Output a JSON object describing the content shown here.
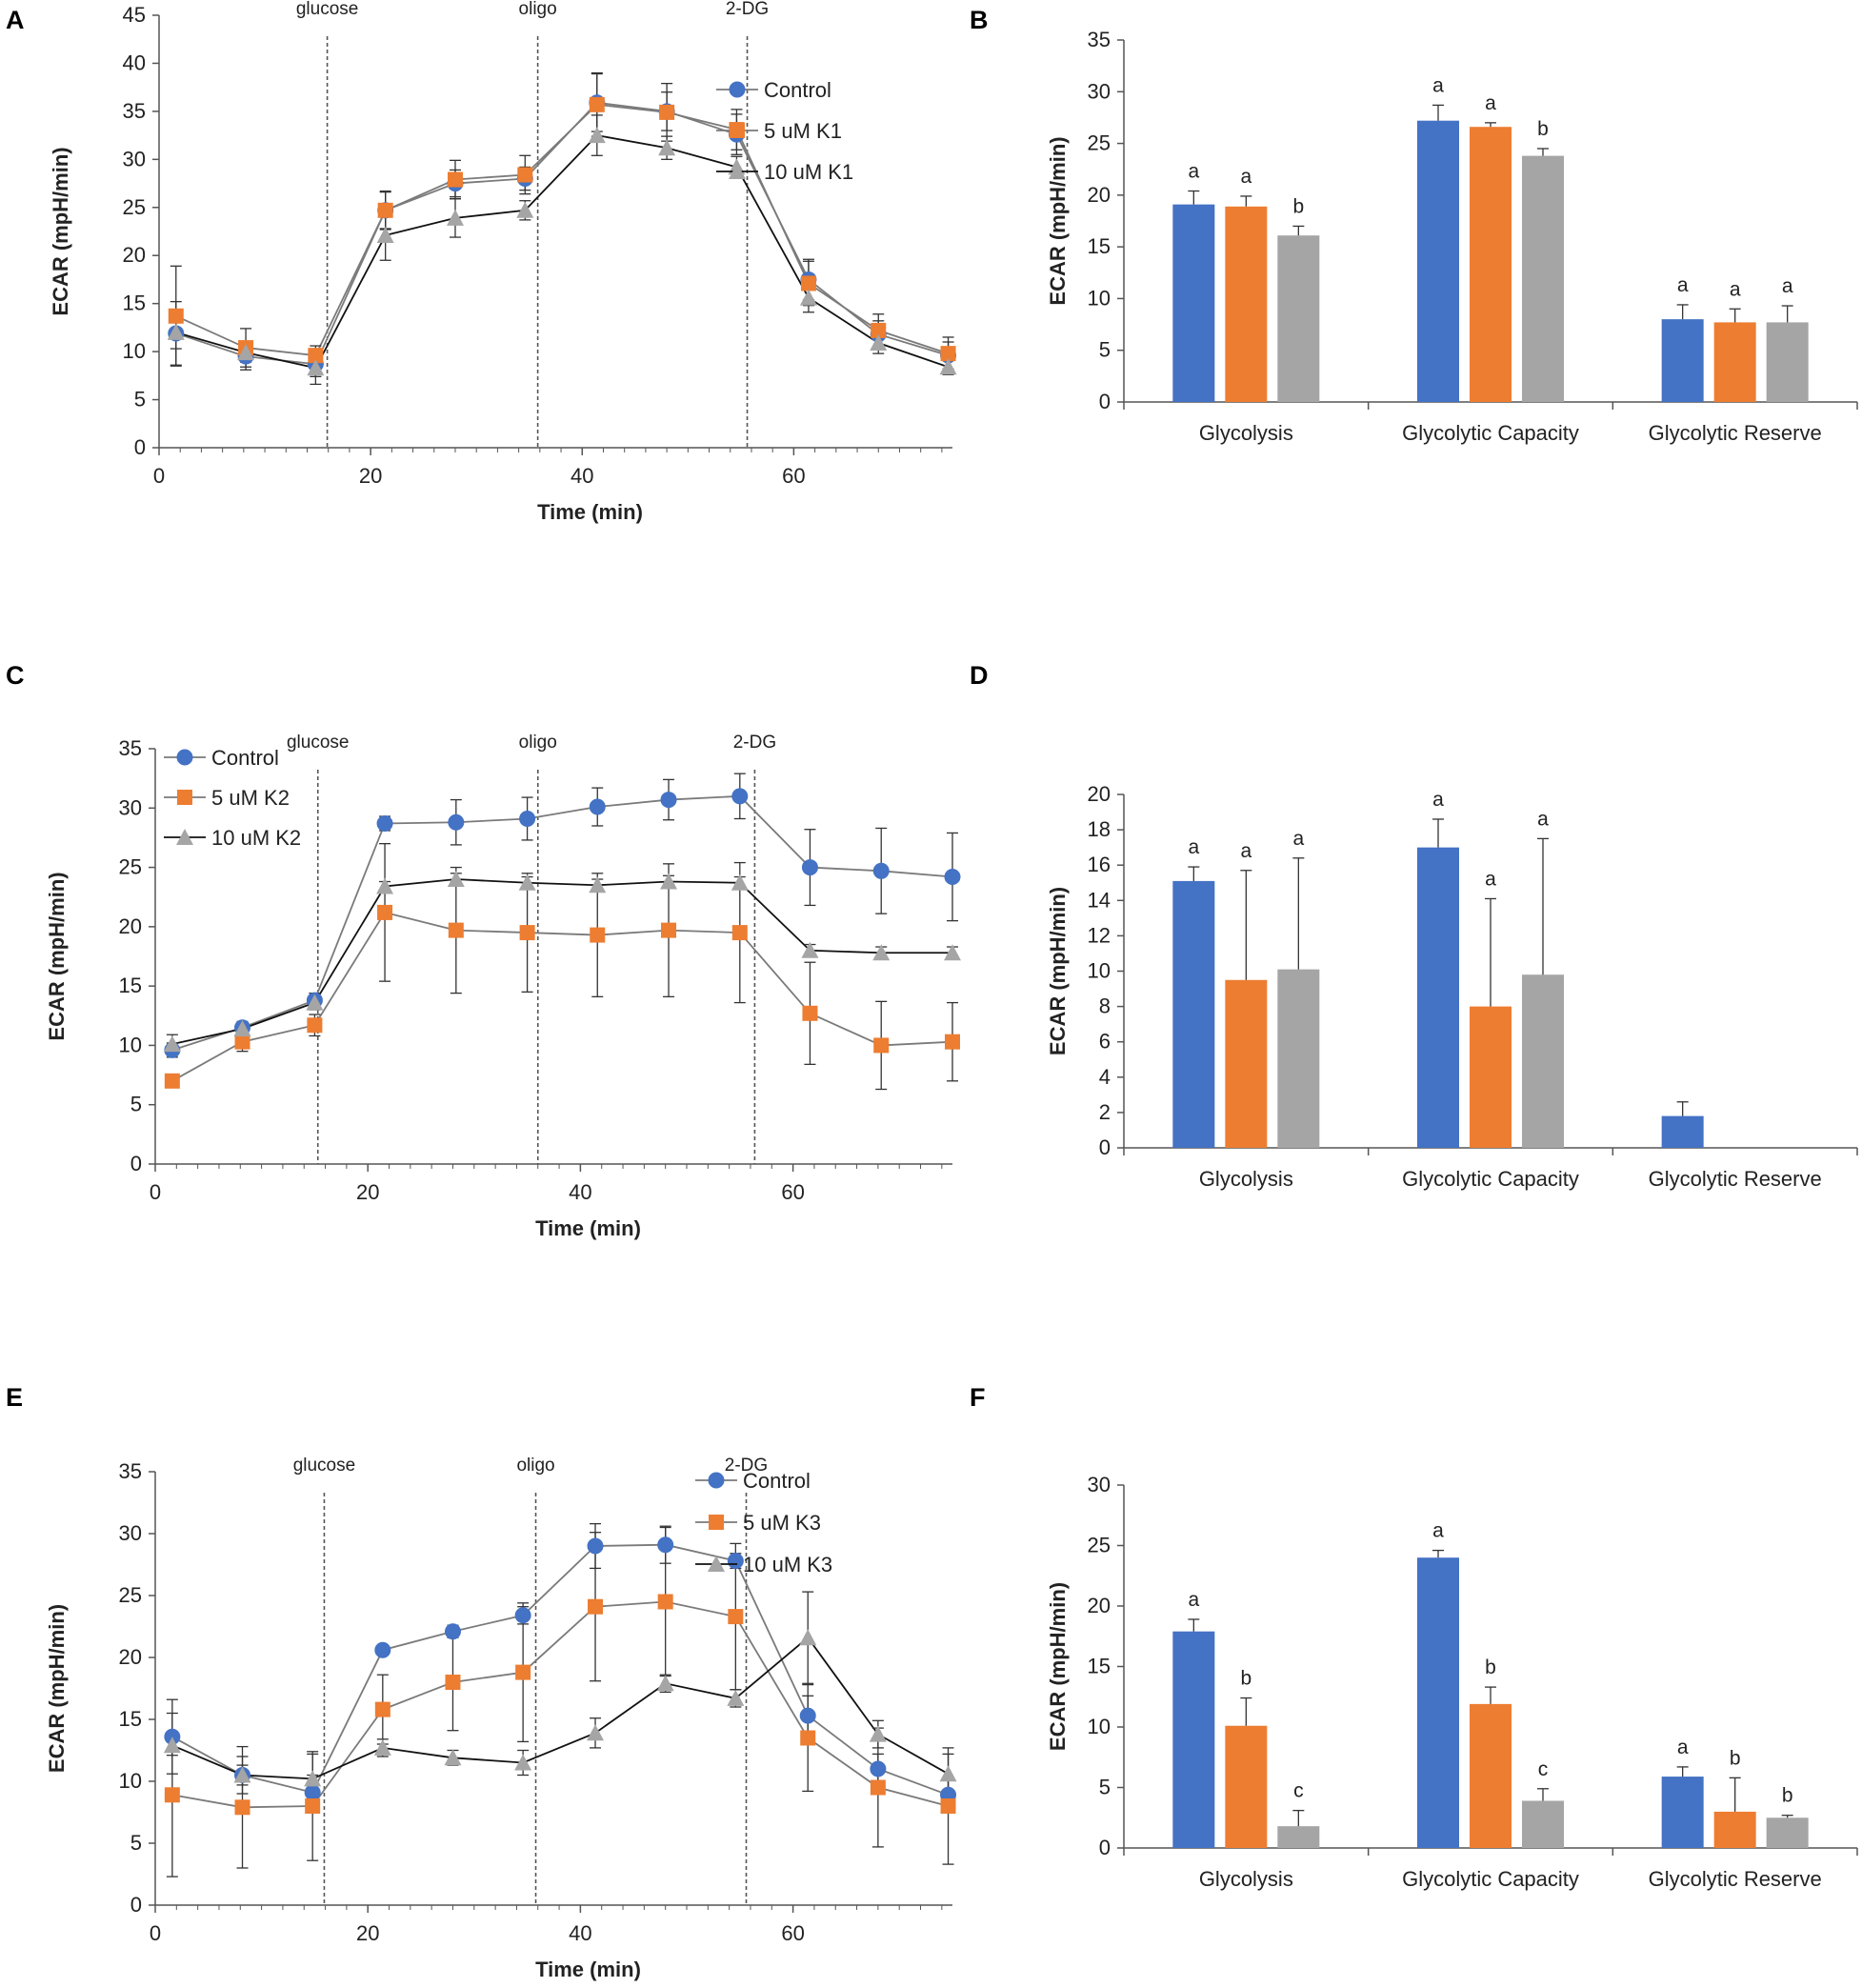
{
  "colors": {
    "blue": "#4472C4",
    "orange": "#ED7D31",
    "gray": "#A5A5A5"
  },
  "chart_data": [
    {
      "id": "A",
      "type": "line",
      "panel_label": "A",
      "xlabel": "Time (min)",
      "ylabel": "ECAR (mpH/min)",
      "xlim": [
        0,
        75
      ],
      "ylim": [
        0,
        45
      ],
      "ystep": 5,
      "xticks": [
        0,
        20,
        40,
        60
      ],
      "legend_pos": "top-right",
      "x": [
        1.6,
        8.2,
        14.8,
        21.4,
        28.0,
        34.6,
        41.4,
        48.0,
        54.6,
        61.4,
        68.0,
        74.6
      ],
      "series": [
        {
          "name": "Control",
          "color": "#4472C4",
          "marker": "circle",
          "values": [
            11.9,
            9.5,
            8.7,
            24.7,
            27.5,
            28.0,
            35.9,
            35.0,
            32.6,
            17.5,
            11.8,
            9.6
          ],
          "err": [
            3.3,
            1.4,
            1.3,
            2.0,
            1.4,
            1.2,
            3.0,
            2.0,
            2.1,
            2.1,
            1.4,
            1.4
          ]
        },
        {
          "name": "5 uM K1",
          "color": "#ED7D31",
          "marker": "square",
          "values": [
            13.7,
            10.4,
            9.6,
            24.7,
            27.9,
            28.4,
            35.7,
            34.9,
            33.1,
            17.1,
            12.2,
            9.8
          ],
          "err": [
            5.2,
            2.0,
            1.0,
            1.9,
            2.0,
            2.0,
            3.3,
            3.0,
            2.1,
            2.3,
            1.7,
            1.7
          ]
        },
        {
          "name": "10 uM K1",
          "color": "#A5A5A5",
          "marker": "triangle",
          "values": [
            12.0,
            9.9,
            8.3,
            22.1,
            23.9,
            24.7,
            32.5,
            31.2,
            29.2,
            15.6,
            10.9,
            8.4
          ],
          "err": [
            1.7,
            1.0,
            1.7,
            2.6,
            2.0,
            1.0,
            2.1,
            1.2,
            1.1,
            1.5,
            1.1,
            0.8
          ]
        }
      ],
      "annotations": [
        {
          "x": 15.9,
          "label": "glucose"
        },
        {
          "x": 35.8,
          "label": "oligo"
        },
        {
          "x": 55.6,
          "label": "2-DG"
        }
      ]
    },
    {
      "id": "B",
      "type": "bar",
      "panel_label": "B",
      "ylabel": "ECAR (mpH/min)",
      "ylim": [
        0,
        35
      ],
      "ystep": 5,
      "categories": [
        "Glycolysis",
        "Glycolytic Capacity",
        "Glycolytic Reserve"
      ],
      "series": [
        {
          "name": "Control",
          "color": "#4472C4",
          "values": [
            19.1,
            27.2,
            8.0
          ],
          "err": [
            1.3,
            1.5,
            1.4
          ],
          "sig": [
            "a",
            "a",
            "a"
          ]
        },
        {
          "name": "5 uM K1",
          "color": "#ED7D31",
          "values": [
            18.9,
            26.6,
            7.7
          ],
          "err": [
            1.0,
            0.4,
            1.3
          ],
          "sig": [
            "a",
            "a",
            "a"
          ]
        },
        {
          "name": "10 uM K1",
          "color": "#A5A5A5",
          "values": [
            16.1,
            23.8,
            7.7
          ],
          "err": [
            0.9,
            0.7,
            1.6
          ],
          "sig": [
            "b",
            "b",
            "a"
          ]
        }
      ]
    },
    {
      "id": "C",
      "type": "line",
      "panel_label": "C",
      "xlabel": "Time (min)",
      "ylabel": "ECAR (mpH/min)",
      "xlim": [
        0,
        75
      ],
      "ylim": [
        0,
        35
      ],
      "ystep": 5,
      "xticks": [
        0,
        20,
        40,
        60
      ],
      "legend_pos": "top-left",
      "x": [
        1.6,
        8.2,
        15.0,
        21.6,
        28.3,
        35.0,
        41.6,
        48.3,
        55.0,
        61.6,
        68.3,
        75.0
      ],
      "series": [
        {
          "name": "Control",
          "color": "#4472C4",
          "marker": "circle",
          "values": [
            9.6,
            11.5,
            13.8,
            28.7,
            28.8,
            29.1,
            30.1,
            30.7,
            31.0,
            25.0,
            24.7,
            24.2
          ],
          "err": [
            0.6,
            0.5,
            0.6,
            0.6,
            1.9,
            1.8,
            1.6,
            1.7,
            1.9,
            3.2,
            3.6,
            3.7
          ]
        },
        {
          "name": "5 uM K2",
          "color": "#ED7D31",
          "marker": "square",
          "values": [
            7.0,
            10.3,
            11.7,
            21.2,
            19.7,
            19.5,
            19.3,
            19.7,
            19.5,
            12.7,
            10.0,
            10.3
          ],
          "err": [
            0.5,
            0.8,
            0.9,
            5.8,
            5.3,
            5.0,
            5.2,
            5.6,
            5.9,
            4.3,
            3.7,
            3.3
          ]
        },
        {
          "name": "10 uM K2",
          "color": "#A5A5A5",
          "marker": "triangle",
          "values": [
            10.1,
            11.4,
            13.6,
            23.4,
            24.0,
            23.7,
            23.5,
            23.8,
            23.7,
            18.0,
            17.8,
            17.8
          ],
          "err": [
            0.8,
            0.6,
            0.6,
            0.4,
            0.5,
            0.5,
            0.5,
            0.5,
            0.5,
            0.5,
            0.5,
            0.5
          ]
        }
      ],
      "annotations": [
        {
          "x": 15.3,
          "label": "glucose"
        },
        {
          "x": 36.0,
          "label": "oligo"
        },
        {
          "x": 56.4,
          "label": "2-DG"
        }
      ]
    },
    {
      "id": "D",
      "type": "bar",
      "panel_label": "D",
      "ylabel": "ECAR (mpH/min)",
      "ylim": [
        0,
        20
      ],
      "ystep": 2,
      "categories": [
        "Glycolysis",
        "Glycolytic Capacity",
        "Glycolytic Reserve"
      ],
      "series": [
        {
          "name": "Control",
          "color": "#4472C4",
          "values": [
            15.1,
            17.0,
            1.8
          ],
          "err": [
            0.8,
            1.6,
            0.8
          ],
          "sig": [
            "a",
            "a",
            ""
          ]
        },
        {
          "name": "5 uM K2",
          "color": "#ED7D31",
          "values": [
            9.5,
            8.0,
            0
          ],
          "err": [
            6.2,
            6.1,
            0
          ],
          "sig": [
            "a",
            "a",
            ""
          ]
        },
        {
          "name": "10 uM K2",
          "color": "#A5A5A5",
          "values": [
            10.1,
            9.8,
            0
          ],
          "err": [
            6.3,
            7.7,
            0
          ],
          "sig": [
            "a",
            "a",
            ""
          ]
        }
      ]
    },
    {
      "id": "E",
      "type": "line",
      "panel_label": "E",
      "xlabel": "Time (min)",
      "ylabel": "ECAR (mpH/min)",
      "xlim": [
        0,
        75
      ],
      "ylim": [
        0,
        35
      ],
      "ystep": 5,
      "xticks": [
        0,
        20,
        40,
        60
      ],
      "legend_pos": "top-right",
      "x": [
        1.6,
        8.2,
        14.8,
        21.4,
        28.0,
        34.6,
        41.4,
        48.0,
        54.6,
        61.4,
        68.0,
        74.6
      ],
      "series": [
        {
          "name": "Control",
          "color": "#4472C4",
          "marker": "circle",
          "values": [
            13.6,
            10.5,
            9.1,
            20.6,
            22.1,
            23.4,
            29.0,
            29.1,
            27.8,
            15.3,
            11.0,
            8.9
          ],
          "err": [
            3.0,
            1.5,
            1.4,
            0.3,
            0.5,
            0.7,
            1.8,
            1.5,
            0.6,
            1.6,
            1.2,
            1.3
          ]
        },
        {
          "name": "5 uM K3",
          "color": "#ED7D31",
          "marker": "square",
          "values": [
            8.9,
            7.9,
            8.0,
            15.8,
            18.0,
            18.8,
            24.1,
            24.5,
            23.3,
            13.5,
            9.5,
            8.0
          ],
          "err": [
            6.6,
            4.9,
            4.4,
            2.8,
            3.9,
            5.6,
            6.0,
            6.0,
            5.9,
            4.3,
            4.8,
            4.7
          ]
        },
        {
          "name": "10 uM K3",
          "color": "#A5A5A5",
          "marker": "triangle",
          "values": [
            12.9,
            10.5,
            10.2,
            12.7,
            11.9,
            11.5,
            13.9,
            17.9,
            16.7,
            21.6,
            13.8,
            10.6
          ],
          "err": [
            0.8,
            0.8,
            2.0,
            0.7,
            0.6,
            1.0,
            1.2,
            0.7,
            0.7,
            3.7,
            1.1,
            1.6
          ]
        }
      ],
      "annotations": [
        {
          "x": 15.9,
          "label": "glucose"
        },
        {
          "x": 35.8,
          "label": "oligo"
        },
        {
          "x": 55.6,
          "label": "2-DG"
        }
      ]
    },
    {
      "id": "F",
      "type": "bar",
      "panel_label": "F",
      "ylabel": "ECAR (mpH/min)",
      "ylim": [
        0,
        30
      ],
      "ystep": 5,
      "categories": [
        "Glycolysis",
        "Glycolytic Capacity",
        "Glycolytic Reserve"
      ],
      "series": [
        {
          "name": "Control",
          "color": "#4472C4",
          "values": [
            17.9,
            24.0,
            5.9
          ],
          "err": [
            1.0,
            0.6,
            0.8
          ],
          "sig": [
            "a",
            "a",
            "a"
          ]
        },
        {
          "name": "5 uM K3",
          "color": "#ED7D31",
          "values": [
            10.1,
            11.9,
            3.0
          ],
          "err": [
            2.3,
            1.4,
            2.8
          ],
          "sig": [
            "b",
            "b",
            "b"
          ]
        },
        {
          "name": "10 uM K3",
          "color": "#A5A5A5",
          "values": [
            1.8,
            3.9,
            2.5
          ],
          "err": [
            1.3,
            1.0,
            0.2
          ],
          "sig": [
            "c",
            "c",
            "b"
          ]
        }
      ]
    }
  ]
}
